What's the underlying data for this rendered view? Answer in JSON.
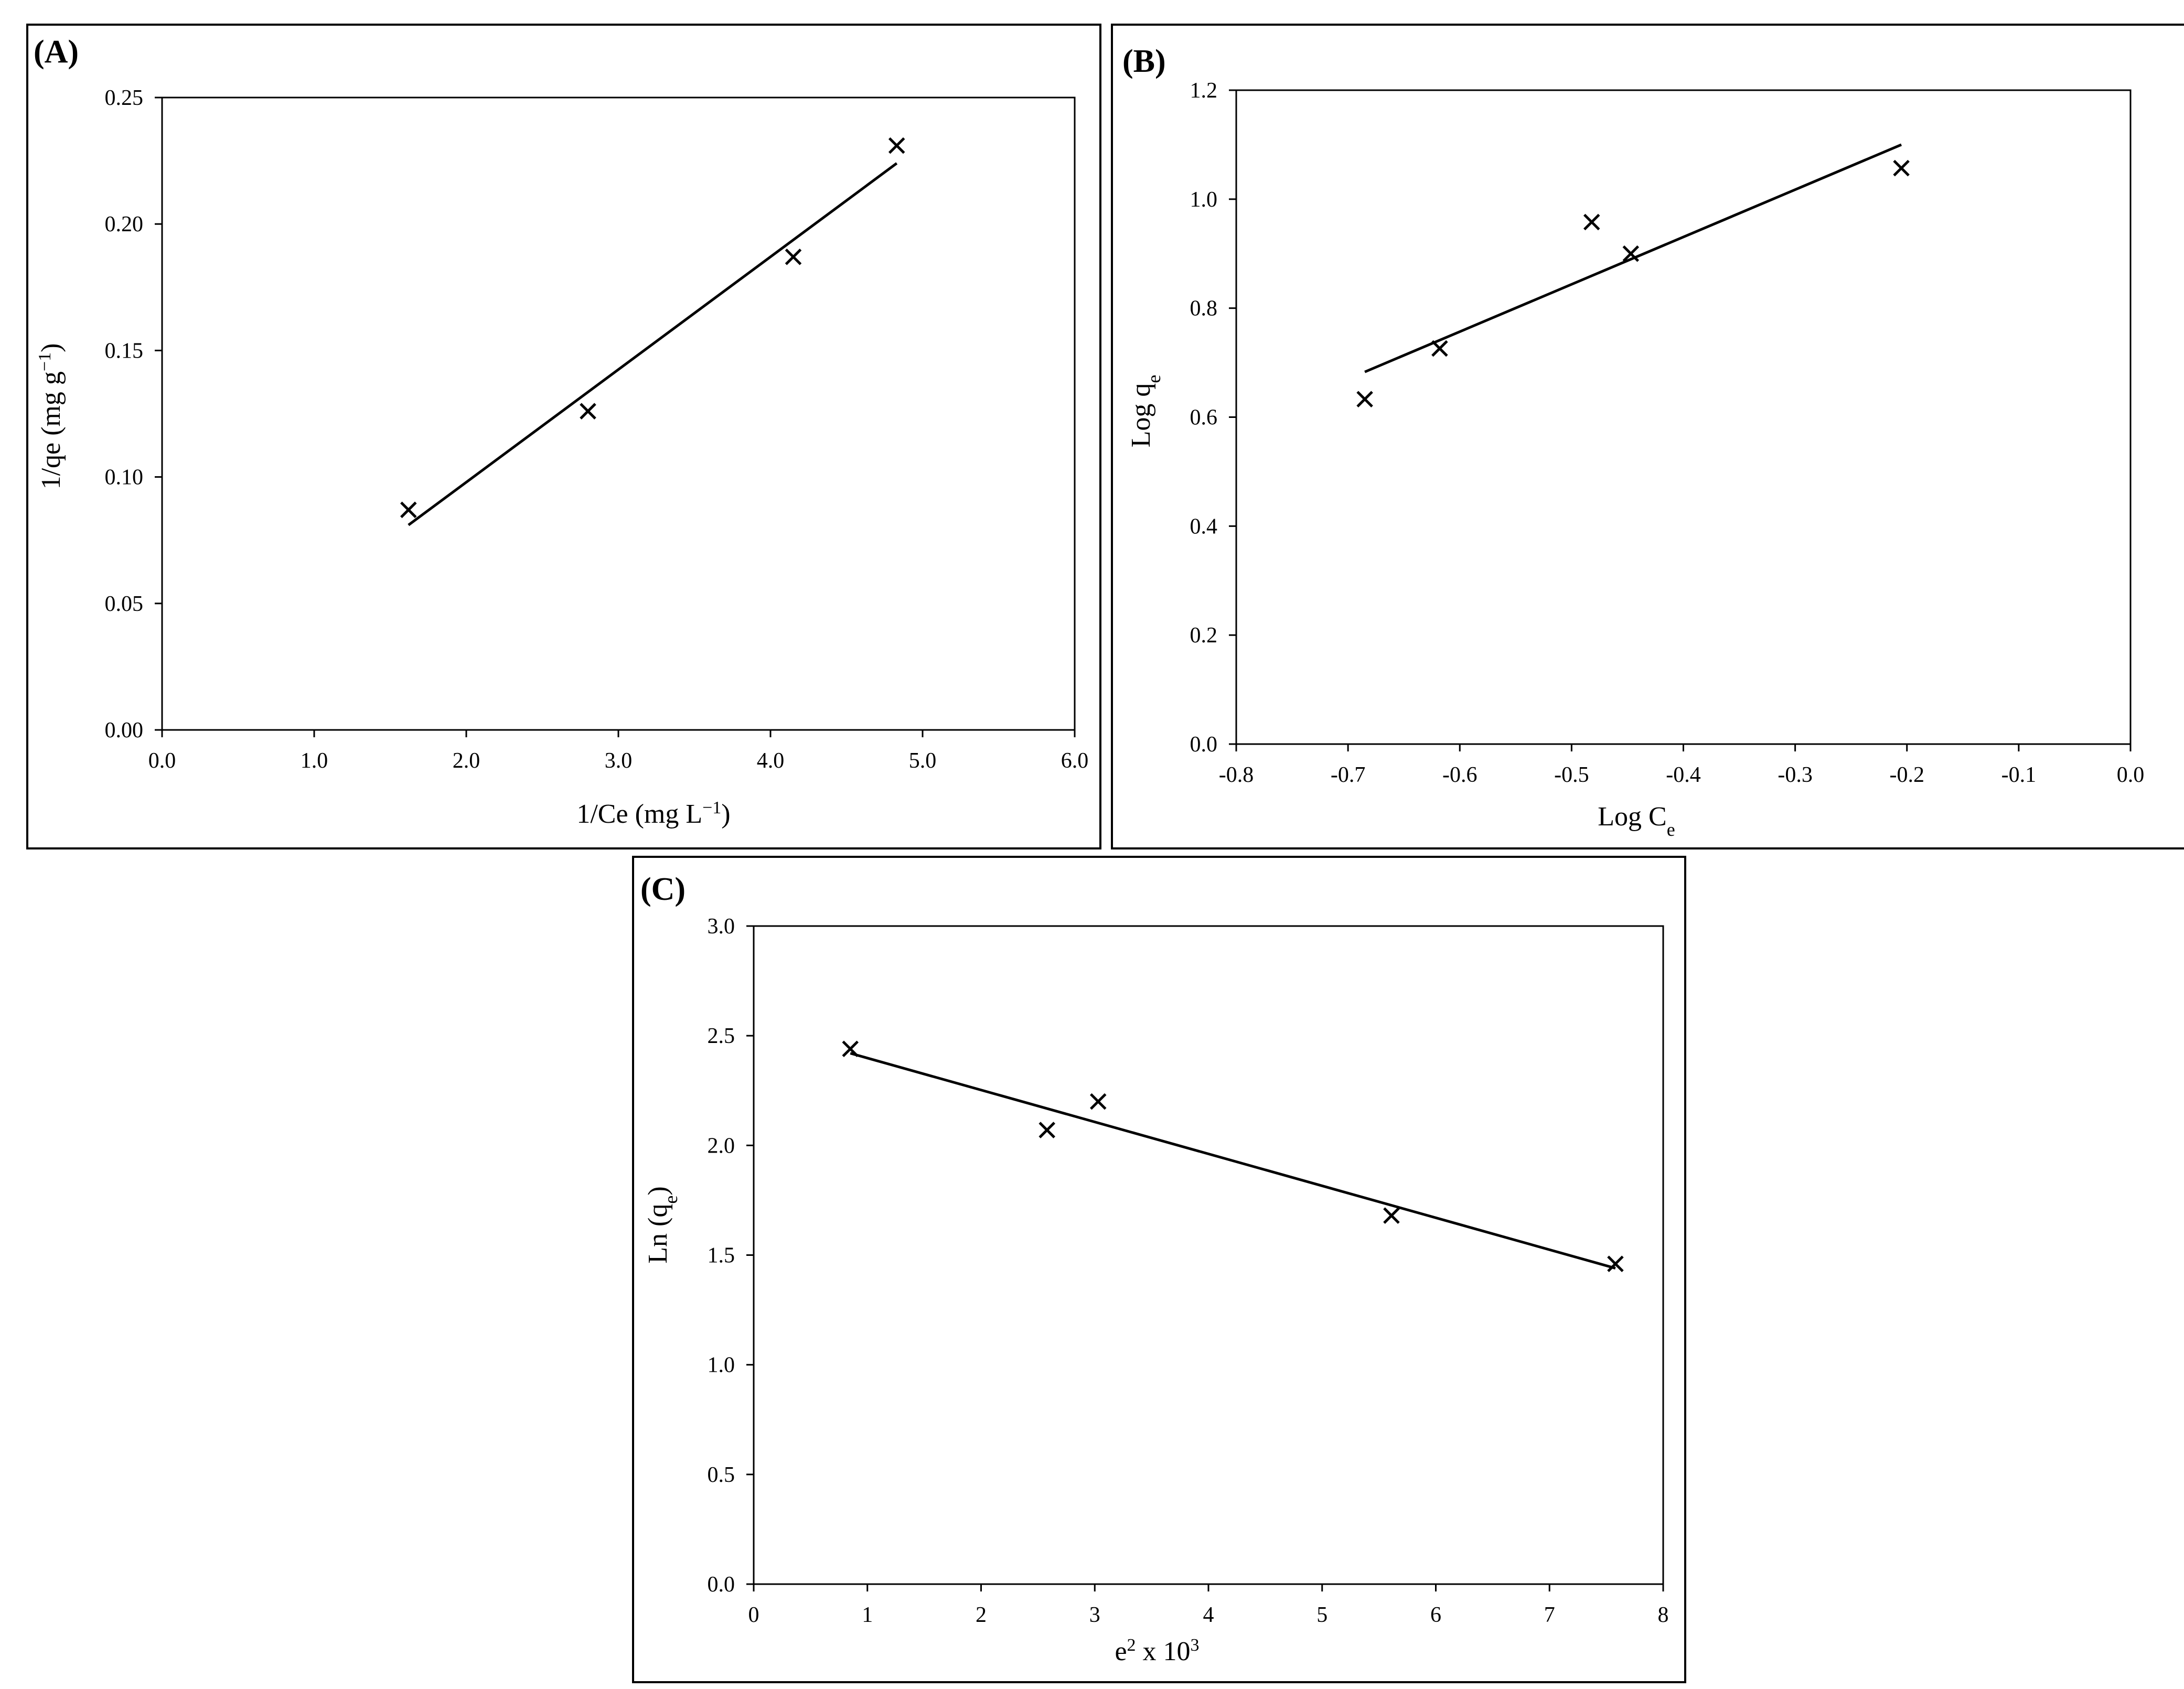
{
  "chart_data": [
    {
      "panel": "(A)",
      "type": "scatter",
      "xlabel": "1/Ce (mg L−1)",
      "ylabel": "1/qe (mg g−1)",
      "xlim": [
        0,
        6
      ],
      "ylim": [
        0,
        0.25
      ],
      "x_ticks": [
        "0.0",
        "1.0",
        "2.0",
        "3.0",
        "4.0",
        "5.0",
        "6.0"
      ],
      "y_ticks": [
        "0.00",
        "0.05",
        "0.10",
        "0.15",
        "0.20",
        "0.25"
      ],
      "points": [
        {
          "x": 1.62,
          "y": 0.087
        },
        {
          "x": 2.8,
          "y": 0.126
        },
        {
          "x": 4.15,
          "y": 0.187
        },
        {
          "x": 4.83,
          "y": 0.231
        }
      ],
      "trendline": [
        [
          1.62,
          0.081
        ],
        [
          4.83,
          0.224
        ]
      ],
      "grid": false,
      "legend": "none"
    },
    {
      "panel": "(B)",
      "type": "scatter",
      "xlabel": "Log Ce",
      "ylabel": "Log qe",
      "xlim": [
        -0.8,
        0.0
      ],
      "ylim": [
        0.0,
        1.2
      ],
      "x_ticks": [
        "-0.8",
        "-0.7",
        "-0.6",
        "-0.5",
        "-0.4",
        "-0.3",
        "-0.2",
        "-0.1",
        "0.0"
      ],
      "y_ticks": [
        "0.0",
        "0.2",
        "0.4",
        "0.6",
        "0.8",
        "1.0",
        "1.2"
      ],
      "points": [
        {
          "x": -0.685,
          "y": 0.633
        },
        {
          "x": -0.618,
          "y": 0.726
        },
        {
          "x": -0.482,
          "y": 0.958
        },
        {
          "x": -0.447,
          "y": 0.9
        },
        {
          "x": -0.205,
          "y": 1.057
        }
      ],
      "trendline": [
        [
          -0.685,
          0.683
        ],
        [
          -0.205,
          1.1
        ]
      ],
      "grid": false,
      "legend": "none"
    },
    {
      "panel": "(C)",
      "type": "scatter",
      "xlabel": "e2 x 103",
      "ylabel": "Ln (qe)",
      "xlim": [
        0,
        8
      ],
      "ylim": [
        0.0,
        3.0
      ],
      "x_ticks": [
        "0",
        "1",
        "2",
        "3",
        "4",
        "5",
        "6",
        "7",
        "8"
      ],
      "y_ticks": [
        "0.0",
        "0.5",
        "1.0",
        "1.5",
        "2.0",
        "2.5",
        "3.0"
      ],
      "points": [
        {
          "x": 0.85,
          "y": 2.44
        },
        {
          "x": 2.58,
          "y": 2.07
        },
        {
          "x": 3.03,
          "y": 2.2
        },
        {
          "x": 5.61,
          "y": 1.68
        },
        {
          "x": 7.58,
          "y": 1.46
        }
      ],
      "trendline": [
        [
          0.85,
          2.42
        ],
        [
          7.58,
          1.44
        ]
      ],
      "grid": false,
      "legend": "none"
    }
  ]
}
